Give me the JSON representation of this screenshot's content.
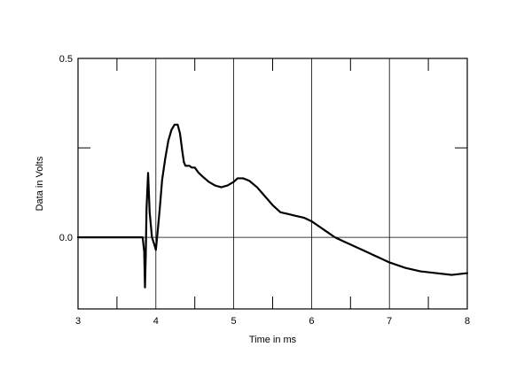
{
  "chart_data": {
    "type": "line",
    "title": "",
    "xlabel": "Time in ms",
    "ylabel": "Data in Volts",
    "xlim": [
      3,
      8
    ],
    "ylim": [
      -0.2,
      0.5
    ],
    "x_ticks": [
      3,
      4,
      5,
      6,
      7,
      8
    ],
    "x_tick_labels": [
      "3",
      "4",
      "5",
      "6",
      "7",
      "8"
    ],
    "y_ticks": [
      0.0,
      0.5
    ],
    "y_tick_labels": [
      "0.0",
      "0.5"
    ],
    "grid": "vertical at integer ms, horizontal at 0.0",
    "legend": "none",
    "line_color": "#000000",
    "series": [
      {
        "x": [
          3.0,
          3.5,
          3.83,
          3.85,
          3.86,
          3.87,
          3.88,
          3.9,
          3.92,
          3.95,
          3.98,
          4.0,
          4.02,
          4.05,
          4.08,
          4.12,
          4.16,
          4.2,
          4.24,
          4.28,
          4.31,
          4.34,
          4.36,
          4.38,
          4.4,
          4.43,
          4.46,
          4.5,
          4.55,
          4.6,
          4.68,
          4.76,
          4.84,
          4.92,
          5.0,
          5.05,
          5.12,
          5.2,
          5.3,
          5.4,
          5.5,
          5.6,
          5.7,
          5.8,
          5.9,
          6.0,
          6.1,
          6.2,
          6.3,
          6.4,
          6.5,
          6.6,
          6.7,
          6.8,
          6.9,
          7.0,
          7.2,
          7.4,
          7.6,
          7.8,
          8.0
        ],
        "y": [
          0.0,
          0.0,
          0.0,
          -0.04,
          -0.14,
          -0.05,
          0.08,
          0.18,
          0.07,
          0.0,
          -0.02,
          -0.035,
          0.01,
          0.08,
          0.16,
          0.22,
          0.27,
          0.3,
          0.315,
          0.315,
          0.29,
          0.24,
          0.21,
          0.2,
          0.2,
          0.2,
          0.195,
          0.195,
          0.18,
          0.17,
          0.155,
          0.145,
          0.14,
          0.145,
          0.155,
          0.165,
          0.165,
          0.158,
          0.14,
          0.115,
          0.09,
          0.07,
          0.065,
          0.06,
          0.055,
          0.045,
          0.03,
          0.015,
          0.0,
          -0.01,
          -0.02,
          -0.03,
          -0.04,
          -0.05,
          -0.06,
          -0.07,
          -0.085,
          -0.095,
          -0.1,
          -0.105,
          -0.1
        ]
      }
    ]
  }
}
